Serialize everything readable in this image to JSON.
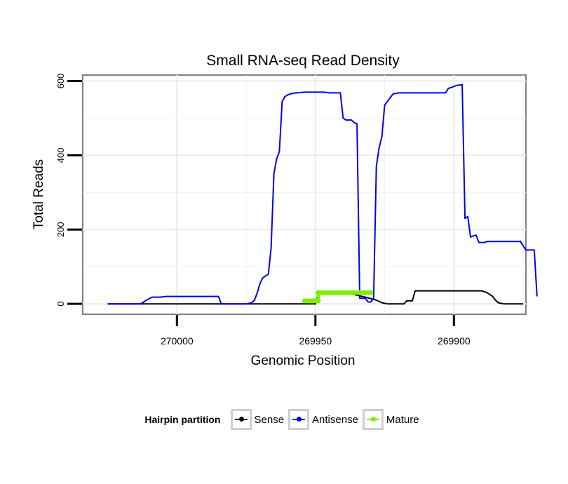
{
  "chart_data": {
    "type": "line",
    "title": "Small RNA-seq Read Density",
    "xlabel": "Genomic Position",
    "ylabel": "Total Reads",
    "xlim": [
      270034,
      269874
    ],
    "ylim": [
      -28,
      616
    ],
    "x_ticks": [
      270000,
      269950,
      269900
    ],
    "x_tick_labels": [
      "270000",
      "269950",
      "269900"
    ],
    "y_ticks": [
      0,
      200,
      400,
      600
    ],
    "y_tick_labels": [
      "0",
      "200",
      "400",
      "600"
    ],
    "grid": true,
    "legend": {
      "title": "Hairpin partition",
      "placement": "bottom",
      "entries": [
        "Sense",
        "Antisense",
        "Mature"
      ]
    },
    "series": [
      {
        "name": "Sense",
        "color": "#000000",
        "style": "line",
        "points": [
          [
            270025,
            0
          ],
          [
            269950,
            0
          ],
          [
            269949,
            28
          ],
          [
            269940,
            28
          ],
          [
            269936,
            25
          ],
          [
            269932,
            18
          ],
          [
            269928,
            10
          ],
          [
            269926,
            3
          ],
          [
            269924,
            0
          ],
          [
            269920,
            0
          ],
          [
            269918,
            0
          ],
          [
            269917,
            8
          ],
          [
            269915,
            8
          ],
          [
            269914,
            35
          ],
          [
            269895,
            35
          ],
          [
            269890,
            35
          ],
          [
            269888,
            30
          ],
          [
            269886,
            20
          ],
          [
            269885,
            10
          ],
          [
            269884,
            3
          ],
          [
            269882,
            0
          ],
          [
            269875,
            0
          ]
        ]
      },
      {
        "name": "Antisense",
        "color": "#0000ee",
        "style": "line",
        "points": [
          [
            270025,
            0
          ],
          [
            270013,
            0
          ],
          [
            270012,
            5
          ],
          [
            270011,
            10
          ],
          [
            270009,
            18
          ],
          [
            270006,
            18
          ],
          [
            270004,
            20
          ],
          [
            269985,
            20
          ],
          [
            269984,
            0
          ],
          [
            269975,
            0
          ],
          [
            269973,
            3
          ],
          [
            269972,
            10
          ],
          [
            269971,
            30
          ],
          [
            269970,
            55
          ],
          [
            269969,
            70
          ],
          [
            269967,
            80
          ],
          [
            269966,
            150
          ],
          [
            269965,
            350
          ],
          [
            269964,
            390
          ],
          [
            269963,
            410
          ],
          [
            269962,
            545
          ],
          [
            269961,
            558
          ],
          [
            269960,
            563
          ],
          [
            269958,
            567
          ],
          [
            269954,
            570
          ],
          [
            269947,
            570
          ],
          [
            269945,
            568
          ],
          [
            269941,
            568
          ],
          [
            269940,
            500
          ],
          [
            269939,
            495
          ],
          [
            269937,
            495
          ],
          [
            269936,
            488
          ],
          [
            269935,
            485
          ],
          [
            269934,
            15
          ],
          [
            269932,
            15
          ],
          [
            269931,
            5
          ],
          [
            269930,
            5
          ],
          [
            269929,
            15
          ],
          [
            269928,
            370
          ],
          [
            269927,
            420
          ],
          [
            269926,
            450
          ],
          [
            269925,
            535
          ],
          [
            269922,
            565
          ],
          [
            269920,
            568
          ],
          [
            269903,
            568
          ],
          [
            269902,
            580
          ],
          [
            269899,
            588
          ],
          [
            269897,
            590
          ],
          [
            269896,
            230
          ],
          [
            269895,
            235
          ],
          [
            269894,
            180
          ],
          [
            269893,
            183
          ],
          [
            269892,
            185
          ],
          [
            269891,
            165
          ],
          [
            269889,
            165
          ],
          [
            269888,
            168
          ],
          [
            269876,
            168
          ],
          [
            269874,
            145
          ],
          [
            269871,
            145
          ],
          [
            269870,
            20
          ]
        ]
      },
      {
        "name": "Mature",
        "color": "#7fee00",
        "style": "dotted-line",
        "points": [
          [
            269954,
            8
          ],
          [
            269949,
            8
          ],
          [
            269949,
            30
          ],
          [
            269930,
            30
          ]
        ]
      }
    ]
  }
}
